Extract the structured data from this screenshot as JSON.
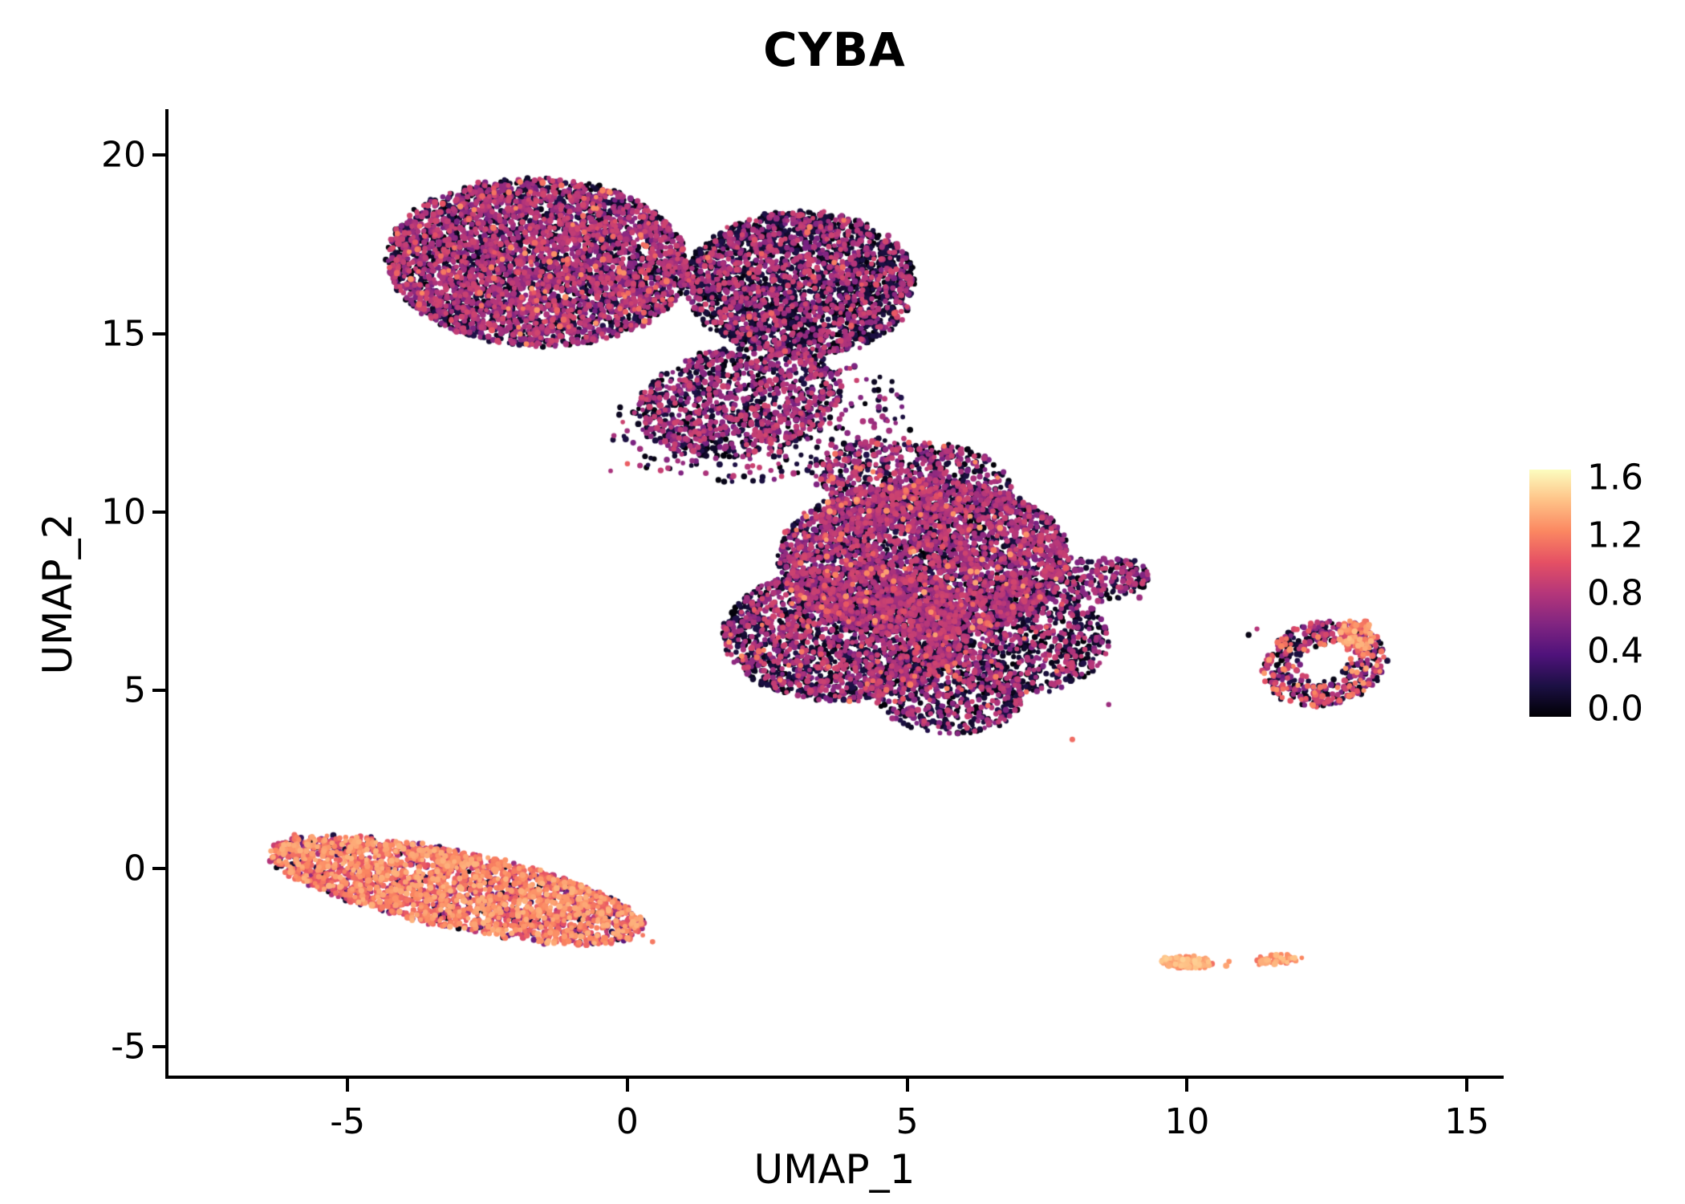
{
  "colors": {
    "background": "#ffffff",
    "axis": "#000000",
    "text": "#000000"
  },
  "chart_data": {
    "type": "scatter",
    "title": "CYBA",
    "xlabel": "UMAP_1",
    "ylabel": "UMAP_2",
    "xlim": [
      -8.2,
      15.6
    ],
    "ylim": [
      -5.8,
      21.2
    ],
    "grid": false,
    "legend_position": "right",
    "x_ticks": [
      {
        "value": -5,
        "label": "-5"
      },
      {
        "value": 0,
        "label": "0"
      },
      {
        "value": 5,
        "label": "5"
      },
      {
        "value": 10,
        "label": "10"
      },
      {
        "value": 15,
        "label": "15"
      }
    ],
    "y_ticks": [
      {
        "value": 20,
        "label": "20"
      },
      {
        "value": 15,
        "label": "15"
      },
      {
        "value": 10,
        "label": "10"
      },
      {
        "value": 5,
        "label": "5"
      },
      {
        "value": 0,
        "label": "0"
      },
      {
        "value": -5,
        "label": "-5"
      }
    ],
    "colorbar": {
      "vmin": 0.0,
      "vmax": 1.6,
      "ticks": [
        "1.6",
        "1.2",
        "0.8",
        "0.4",
        "0.0"
      ],
      "colormap": "magma",
      "stops": [
        [
          0.0,
          "#000004"
        ],
        [
          0.125,
          "#1c1044"
        ],
        [
          0.25,
          "#4f127b"
        ],
        [
          0.375,
          "#812581"
        ],
        [
          0.5,
          "#b5367a"
        ],
        [
          0.625,
          "#e55064"
        ],
        [
          0.75,
          "#fb8761"
        ],
        [
          0.875,
          "#fec287"
        ],
        [
          1.0,
          "#fcfdbf"
        ]
      ]
    },
    "point_radius_px": {
      "base": 2.8,
      "jitter": 1.2
    },
    "clusters": [
      {
        "name": "top-left-lobe",
        "cx": -1.6,
        "cy": 17.0,
        "rx": 2.7,
        "ry": 2.35,
        "rot_deg": -8,
        "count": 4200,
        "value_mix": [
          {
            "w": 0.44,
            "min": 0,
            "max": 0.22
          },
          {
            "w": 0.53,
            "min": 0.55,
            "max": 0.92
          },
          {
            "w": 0.03,
            "min": 0.95,
            "max": 1.25
          }
        ]
      },
      {
        "name": "top-right-lobe",
        "cx": 3.1,
        "cy": 16.4,
        "rx": 2.05,
        "ry": 2.05,
        "rot_deg": 0,
        "count": 2600,
        "value_mix": [
          {
            "w": 0.63,
            "min": 0,
            "max": 0.22
          },
          {
            "w": 0.36,
            "min": 0.55,
            "max": 0.92
          },
          {
            "w": 0.01,
            "min": 0.95,
            "max": 1.2
          }
        ]
      },
      {
        "name": "top-neck",
        "cx": 2.0,
        "cy": 13.1,
        "rx": 1.9,
        "ry": 1.5,
        "rot_deg": 25,
        "count": 1000,
        "value_mix": [
          {
            "w": 0.48,
            "min": 0,
            "max": 0.22
          },
          {
            "w": 0.52,
            "min": 0.55,
            "max": 0.92
          }
        ]
      },
      {
        "name": "top-halo",
        "cx": 2.3,
        "cy": 12.6,
        "rx": 2.7,
        "ry": 1.7,
        "rot_deg": 15,
        "count": 330,
        "value_mix": [
          {
            "w": 0.5,
            "min": 0,
            "max": 0.22
          },
          {
            "w": 0.5,
            "min": 0.55,
            "max": 0.9
          }
        ]
      },
      {
        "name": "central-main",
        "cx": 5.3,
        "cy": 8.7,
        "rx": 2.6,
        "ry": 2.2,
        "rot_deg": 0,
        "count": 3800,
        "value_mix": [
          {
            "w": 0.42,
            "min": 0,
            "max": 0.22
          },
          {
            "w": 0.55,
            "min": 0.55,
            "max": 0.92
          },
          {
            "w": 0.03,
            "min": 0.95,
            "max": 1.3
          }
        ]
      },
      {
        "name": "central-upper",
        "cx": 5.1,
        "cy": 10.9,
        "rx": 1.8,
        "ry": 1.15,
        "rot_deg": -10,
        "count": 700,
        "value_mix": [
          {
            "w": 0.4,
            "min": 0,
            "max": 0.22
          },
          {
            "w": 0.57,
            "min": 0.55,
            "max": 0.92
          },
          {
            "w": 0.03,
            "min": 0.95,
            "max": 1.25
          }
        ]
      },
      {
        "name": "central-left",
        "cx": 3.9,
        "cy": 6.6,
        "rx": 2.2,
        "ry": 1.9,
        "rot_deg": 10,
        "count": 2200,
        "value_mix": [
          {
            "w": 0.55,
            "min": 0,
            "max": 0.22
          },
          {
            "w": 0.43,
            "min": 0.55,
            "max": 0.92
          },
          {
            "w": 0.02,
            "min": 0.95,
            "max": 1.25
          }
        ]
      },
      {
        "name": "central-lower-right",
        "cx": 7.0,
        "cy": 6.4,
        "rx": 1.6,
        "ry": 1.5,
        "rot_deg": 0,
        "count": 900,
        "value_mix": [
          {
            "w": 0.6,
            "min": 0,
            "max": 0.22
          },
          {
            "w": 0.38,
            "min": 0.55,
            "max": 0.9
          },
          {
            "w": 0.02,
            "min": 0.95,
            "max": 1.2
          }
        ]
      },
      {
        "name": "central-bottom-tip",
        "cx": 5.7,
        "cy": 5.0,
        "rx": 1.4,
        "ry": 1.2,
        "rot_deg": -20,
        "count": 600,
        "value_mix": [
          {
            "w": 0.58,
            "min": 0,
            "max": 0.22
          },
          {
            "w": 0.4,
            "min": 0.55,
            "max": 0.9
          },
          {
            "w": 0.02,
            "min": 0.95,
            "max": 1.2
          }
        ]
      },
      {
        "name": "central-right-spur",
        "cx": 8.4,
        "cy": 8.1,
        "rx": 0.95,
        "ry": 0.6,
        "rot_deg": 10,
        "count": 240,
        "value_mix": [
          {
            "w": 0.5,
            "min": 0,
            "max": 0.22
          },
          {
            "w": 0.5,
            "min": 0.55,
            "max": 0.9
          }
        ]
      },
      {
        "name": "bottom-left-band",
        "cx": -3.05,
        "cy": -0.6,
        "rx": 3.55,
        "ry": 1.05,
        "rot_deg": -19,
        "count": 2600,
        "value_mix": [
          {
            "w": 0.62,
            "min": 1.0,
            "max": 1.35
          },
          {
            "w": 0.13,
            "min": 0.8,
            "max": 1.0
          },
          {
            "w": 0.16,
            "min": 0.45,
            "max": 0.8
          },
          {
            "w": 0.09,
            "min": 0,
            "max": 0.3
          }
        ]
      },
      {
        "name": "right-small-cluster",
        "cx": 12.45,
        "cy": 5.75,
        "rx": 1.05,
        "ry": 1.25,
        "rot_deg": -30,
        "count": 520,
        "r_min": 0.35,
        "value_mix": [
          {
            "w": 0.38,
            "min": 0,
            "max": 0.22
          },
          {
            "w": 0.4,
            "min": 0.5,
            "max": 0.95
          },
          {
            "w": 0.22,
            "min": 0.95,
            "max": 1.3
          }
        ]
      },
      {
        "name": "right-cluster-bright-edge",
        "cx": 13.05,
        "cy": 6.55,
        "rx": 0.35,
        "ry": 0.45,
        "rot_deg": 0,
        "count": 70,
        "value_mix": [
          {
            "w": 0.85,
            "min": 1.0,
            "max": 1.4
          },
          {
            "w": 0.15,
            "min": 0.6,
            "max": 0.95
          }
        ]
      },
      {
        "name": "bottom-right-dots-a",
        "cx": 10.0,
        "cy": -2.62,
        "rx": 0.45,
        "ry": 0.17,
        "rot_deg": -5,
        "count": 120,
        "value_mix": [
          {
            "w": 1,
            "min": 1.1,
            "max": 1.45
          }
        ]
      },
      {
        "name": "bottom-right-dots-b",
        "cx": 11.55,
        "cy": -2.55,
        "rx": 0.38,
        "ry": 0.13,
        "rot_deg": 8,
        "count": 65,
        "value_mix": [
          {
            "w": 1,
            "min": 1.05,
            "max": 1.4
          }
        ]
      }
    ],
    "outliers": [
      [
        0.0,
        11.35,
        1.05
      ],
      [
        -0.3,
        11.15,
        0.75
      ],
      [
        1.3,
        11.6,
        0.05
      ],
      [
        0.6,
        11.95,
        0.6
      ],
      [
        7.95,
        3.62,
        1.1
      ],
      [
        9.0,
        8.35,
        0.05
      ],
      [
        9.15,
        7.6,
        0.7
      ],
      [
        11.25,
        6.72,
        0.8
      ],
      [
        11.1,
        6.55,
        0.05
      ],
      [
        10.75,
        -2.6,
        1.25
      ],
      [
        10.7,
        -2.72,
        1.3
      ],
      [
        12.05,
        -2.5,
        1.2
      ],
      [
        4.65,
        12.55,
        0.75
      ],
      [
        5.05,
        12.3,
        0.02
      ],
      [
        2.7,
        11.35,
        0.8
      ],
      [
        3.3,
        11.1,
        0.1
      ],
      [
        -5.95,
        0.95,
        1.1
      ],
      [
        0.45,
        -2.05,
        1.15
      ],
      [
        6.3,
        3.9,
        0.05
      ],
      [
        8.6,
        4.6,
        0.7
      ]
    ]
  }
}
